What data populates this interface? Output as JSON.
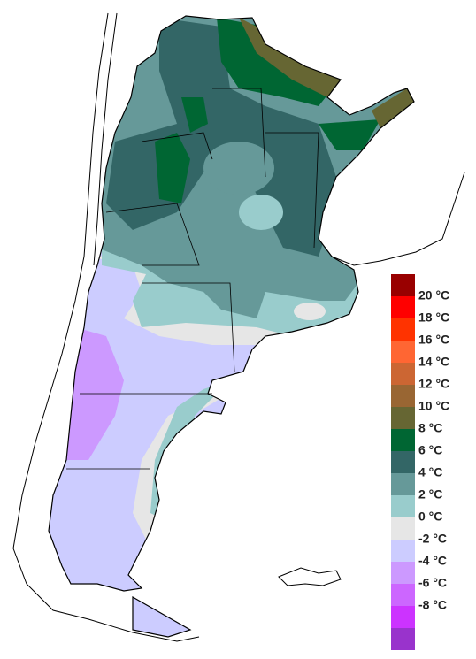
{
  "legend": {
    "labels": [
      "20 °C",
      "18 °C",
      "16 °C",
      "14 °C",
      "12 °C",
      "10 °C",
      "8 °C",
      "6 °C",
      "4 °C",
      "2 °C",
      "0 °C",
      "-2 °C",
      "-4 °C",
      "-6 °C",
      "-8 °C"
    ],
    "colors": [
      "#990000",
      "#ff0000",
      "#ff3300",
      "#ff6633",
      "#cc6633",
      "#996633",
      "#666633",
      "#006633",
      "#336666",
      "#669999",
      "#99cccc",
      "#e6e6e6",
      "#ccccff",
      "#cc99ff",
      "#cc66ff",
      "#cc33ff",
      "#9933cc"
    ]
  }
}
